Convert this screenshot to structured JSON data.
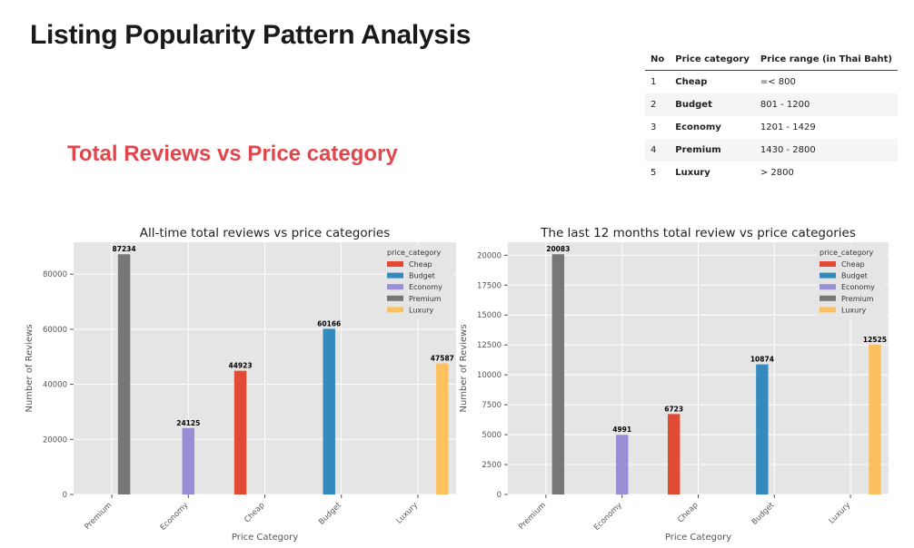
{
  "page": {
    "title": "Listing Popularity Pattern Analysis",
    "section_title": "Total Reviews vs Price category"
  },
  "price_table": {
    "headers": [
      "No",
      "Price category",
      "Price range (in Thai Baht)"
    ],
    "rows": [
      {
        "no": "1",
        "category": "Cheap",
        "range": "=< 800"
      },
      {
        "no": "2",
        "category": "Budget",
        "range": "801 - 1200"
      },
      {
        "no": "3",
        "category": "Economy",
        "range": "1201 - 1429"
      },
      {
        "no": "4",
        "category": "Premium",
        "range": "1430 - 2800"
      },
      {
        "no": "5",
        "category": "Luxury",
        "range": "> 2800"
      }
    ]
  },
  "colors": {
    "Cheap": "#E24A33",
    "Budget": "#348ABD",
    "Economy": "#988ED5",
    "Premium": "#777777",
    "Luxury": "#FBC15E",
    "plot_bg": "#E5E5E5",
    "grid": "#ffffff"
  },
  "chart_data": [
    {
      "type": "bar",
      "title": "All-time total reviews vs price categories",
      "xlabel": "Price Category",
      "ylabel": "Number of Reviews",
      "categories": [
        "Premium",
        "Economy",
        "Cheap",
        "Budget",
        "Luxury"
      ],
      "hue_order": [
        "Cheap",
        "Budget",
        "Economy",
        "Premium",
        "Luxury"
      ],
      "legend_title": "price_category",
      "legend_position": "top-right",
      "series": [
        {
          "name": "Premium",
          "category": "Premium",
          "value": 87234
        },
        {
          "name": "Economy",
          "category": "Economy",
          "value": 24125
        },
        {
          "name": "Cheap",
          "category": "Cheap",
          "value": 44923
        },
        {
          "name": "Budget",
          "category": "Budget",
          "value": 60166
        },
        {
          "name": "Luxury",
          "category": "Luxury",
          "value": 47587
        }
      ],
      "yticks": [
        0,
        20000,
        40000,
        60000,
        80000
      ],
      "ylim": [
        0,
        91596
      ],
      "grid": true
    },
    {
      "type": "bar",
      "title": "The last 12 months total review vs price categories",
      "xlabel": "Price Category",
      "ylabel": "Number of Reviews",
      "categories": [
        "Premium",
        "Economy",
        "Cheap",
        "Budget",
        "Luxury"
      ],
      "hue_order": [
        "Cheap",
        "Budget",
        "Economy",
        "Premium",
        "Luxury"
      ],
      "legend_title": "price_category",
      "legend_position": "top-right",
      "series": [
        {
          "name": "Premium",
          "category": "Premium",
          "value": 20083
        },
        {
          "name": "Economy",
          "category": "Economy",
          "value": 4991
        },
        {
          "name": "Cheap",
          "category": "Cheap",
          "value": 6723
        },
        {
          "name": "Budget",
          "category": "Budget",
          "value": 10874
        },
        {
          "name": "Luxury",
          "category": "Luxury",
          "value": 12525
        }
      ],
      "yticks": [
        0,
        2500,
        5000,
        7500,
        10000,
        12500,
        15000,
        17500,
        20000
      ],
      "ylim": [
        0,
        21087
      ],
      "grid": true
    }
  ]
}
